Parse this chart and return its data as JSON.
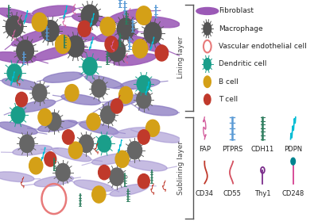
{
  "legend_items": [
    {
      "label": "Fibroblast",
      "color": "#9B59B6"
    },
    {
      "label": "Macrophage",
      "color": "#555555"
    },
    {
      "label": "Vascular endothelial cell",
      "color": "#e87a7a"
    },
    {
      "label": "Dendritic cell",
      "color": "#1a9e8a"
    },
    {
      "label": "B cell",
      "color": "#d4a017"
    },
    {
      "label": "T cell",
      "color": "#c0392b"
    }
  ],
  "markers_row1": [
    {
      "label": "FAP",
      "color": "#d4609e"
    },
    {
      "label": "PTPRS",
      "color": "#5b9bd5"
    },
    {
      "label": "CDH11",
      "color": "#2e7d5e"
    },
    {
      "label": "PDPN",
      "color": "#00bcd4"
    }
  ],
  "markers_row2": [
    {
      "label": "CD34",
      "color": "#c0392b"
    },
    {
      "label": "CD55",
      "color": "#c0392b"
    },
    {
      "label": "Thy1",
      "color": "#7b2d8b"
    },
    {
      "label": "CD248",
      "color": "#00838f"
    }
  ],
  "lining_layer_label": "Lining layer",
  "sublining_layer_label": "Sublining layer",
  "bg_color": "#ffffff",
  "fontsize_legend": 6.5,
  "fontsize_marker": 6.0,
  "fontsize_layer": 6.5
}
